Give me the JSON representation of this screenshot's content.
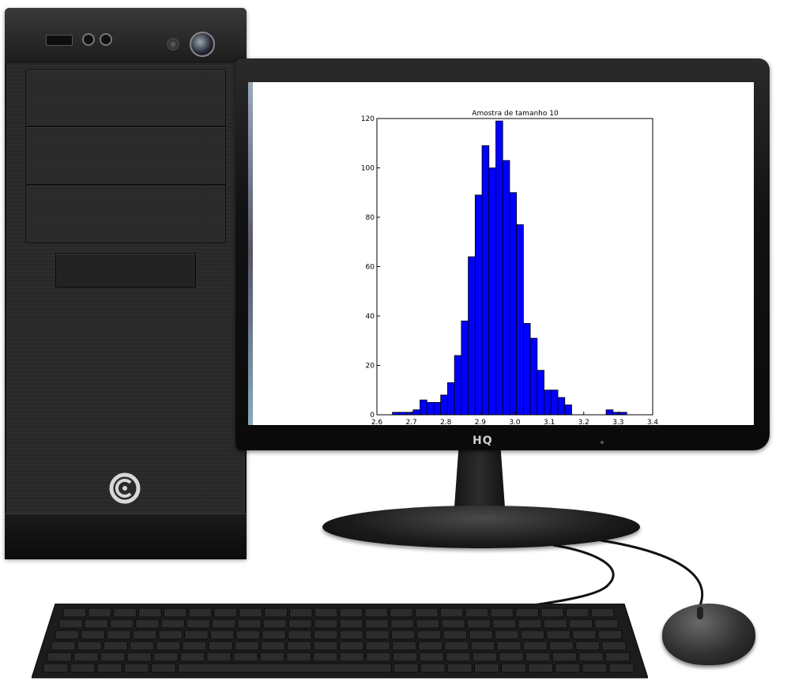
{
  "monitor": {
    "brand": "HQ"
  },
  "colors": {
    "bar_fill": "#0000ff",
    "bar_edge": "#000000",
    "case": "#262626"
  },
  "icons": {
    "tower_logo": "circle-c-logo-icon"
  },
  "chart_data": {
    "type": "bar",
    "title": "Amostra de tamanho 10",
    "xlabel": "",
    "ylabel": "",
    "xlim": [
      2.6,
      3.4
    ],
    "ylim": [
      0,
      120
    ],
    "xticks": [
      "2.6",
      "2.7",
      "2.8",
      "2.9",
      "3.0",
      "3.1",
      "3.2",
      "3.3",
      "3.4"
    ],
    "yticks": [
      "0",
      "20",
      "40",
      "60",
      "80",
      "100",
      "120"
    ],
    "bin_edges": [
      2.645,
      2.665,
      2.685,
      2.705,
      2.725,
      2.745,
      2.765,
      2.785,
      2.805,
      2.825,
      2.845,
      2.865,
      2.885,
      2.905,
      2.925,
      2.945,
      2.965,
      2.985,
      3.005,
      3.025,
      3.045,
      3.065,
      3.085,
      3.105,
      3.125,
      3.145,
      3.165,
      3.185,
      3.205,
      3.225,
      3.245,
      3.265,
      3.285,
      3.305,
      3.325,
      3.345,
      3.365,
      3.385
    ],
    "counts": [
      1,
      1,
      1,
      2,
      6,
      5,
      5,
      8,
      13,
      24,
      38,
      64,
      89,
      109,
      100,
      119,
      103,
      90,
      77,
      37,
      31,
      18,
      10,
      10,
      7,
      4,
      0,
      0,
      0,
      0,
      0,
      2,
      1,
      1,
      0,
      0,
      0
    ],
    "grid": false,
    "legend": "none"
  }
}
